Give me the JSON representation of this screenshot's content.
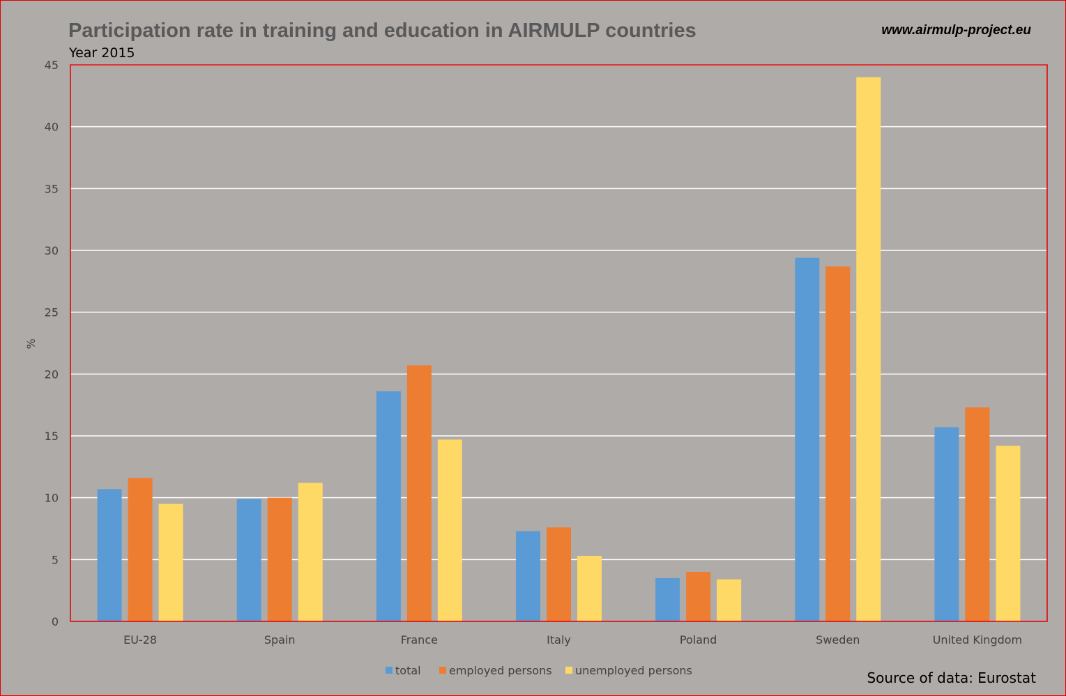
{
  "website": "www.airmulp-project.eu",
  "source": "Source of data: Eurostat",
  "colors": {
    "background": "#afaba9",
    "frame": "#e00000",
    "grid": "#ffffff",
    "total": "#5b9bd5",
    "employed": "#ed7d31",
    "unemployed": "#ffd966"
  },
  "chart_data": {
    "type": "bar",
    "title": "Participation rate in training and education in AIRMULP countries",
    "subtitle": "Year 2015",
    "xlabel": "",
    "ylabel": "%",
    "ylim": [
      0,
      45
    ],
    "yticks": [
      "0",
      "5",
      "10",
      "15",
      "20",
      "25",
      "30",
      "35",
      "40",
      "45"
    ],
    "grid": true,
    "legend_position": "bottom",
    "categories": [
      "EU-28",
      "Spain",
      "France",
      "Italy",
      "Poland",
      "Sweden",
      "United Kingdom"
    ],
    "series": [
      {
        "name": "total",
        "color": "#5b9bd5",
        "values": [
          10.7,
          9.9,
          18.6,
          7.3,
          3.5,
          29.4,
          15.7
        ]
      },
      {
        "name": "employed persons",
        "color": "#ed7d31",
        "values": [
          11.6,
          10.0,
          20.7,
          7.6,
          4.0,
          28.7,
          17.3
        ]
      },
      {
        "name": "unemployed persons",
        "color": "#ffd966",
        "values": [
          9.5,
          11.2,
          14.7,
          5.3,
          3.4,
          44.0,
          14.2
        ]
      }
    ]
  }
}
